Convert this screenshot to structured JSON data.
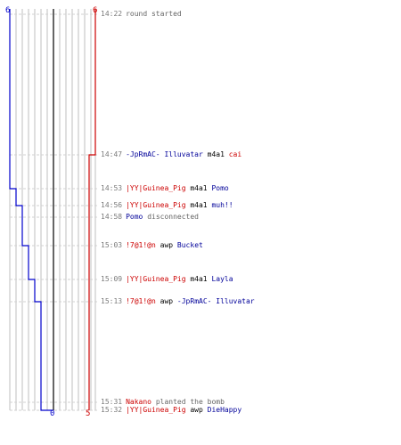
{
  "colors": {
    "team_a": "#0000cc",
    "team_b": "#cc0000",
    "grid": "#bfbfbf",
    "center": "#666666",
    "dash": "#d0d0d0"
  },
  "team_a": {
    "start_count": "6",
    "end_count": "0"
  },
  "team_b": {
    "start_count": "6",
    "end_count": "5"
  },
  "alive_counts": {
    "team_a": [
      6,
      5,
      4,
      3,
      2,
      1,
      0
    ],
    "team_b": [
      6,
      5
    ]
  },
  "events": [
    {
      "time": "14:22",
      "parts": [
        {
          "text": "round started",
          "style": "txt"
        }
      ]
    },
    {
      "time": "14:47",
      "parts": [
        {
          "text": "-JpRmAC- Illuvatar",
          "style": "blue"
        },
        {
          "text": "m4a1",
          "style": "blk"
        },
        {
          "text": "cai",
          "style": "red"
        }
      ]
    },
    {
      "time": "14:53",
      "parts": [
        {
          "text": "|YY|Guinea_Pig",
          "style": "red"
        },
        {
          "text": "m4a1",
          "style": "blk"
        },
        {
          "text": "Pomo",
          "style": "blue"
        }
      ]
    },
    {
      "time": "14:56",
      "parts": [
        {
          "text": "|YY|Guinea_Pig",
          "style": "red"
        },
        {
          "text": "m4a1",
          "style": "blk"
        },
        {
          "text": "muh!!",
          "style": "blue"
        }
      ]
    },
    {
      "time": "14:58",
      "parts": [
        {
          "text": "Pomo",
          "style": "blue"
        },
        {
          "text": "disconnected",
          "style": "txt"
        }
      ]
    },
    {
      "time": "15:03",
      "parts": [
        {
          "text": "!7@1!@n",
          "style": "red"
        },
        {
          "text": "awp",
          "style": "blk"
        },
        {
          "text": "Bucket",
          "style": "blue"
        }
      ]
    },
    {
      "time": "15:09",
      "parts": [
        {
          "text": "|YY|Guinea_Pig",
          "style": "red"
        },
        {
          "text": "m4a1",
          "style": "blk"
        },
        {
          "text": "Layla",
          "style": "blue"
        }
      ]
    },
    {
      "time": "15:13",
      "parts": [
        {
          "text": "!7@1!@n",
          "style": "red"
        },
        {
          "text": "awp",
          "style": "blk"
        },
        {
          "text": "-JpRmAC- Illuvatar",
          "style": "blue"
        }
      ]
    },
    {
      "time": "15:31",
      "parts": [
        {
          "text": "Nakano",
          "style": "red"
        },
        {
          "text": "planted the bomb",
          "style": "txt"
        }
      ]
    },
    {
      "time": "15:32",
      "parts": [
        {
          "text": "|YY|Guinea_Pig",
          "style": "red"
        },
        {
          "text": "awp",
          "style": "blk"
        },
        {
          "text": "DieHappy",
          "style": "blue"
        }
      ]
    }
  ]
}
